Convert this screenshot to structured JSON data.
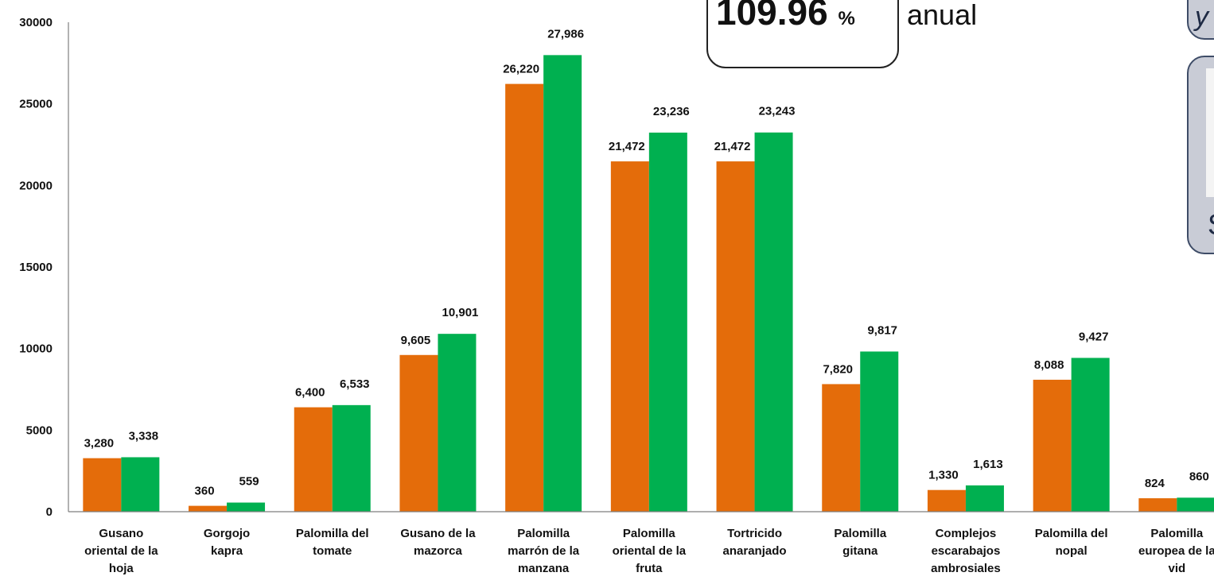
{
  "chart_data": {
    "type": "bar",
    "categories": [
      [
        "Gusano",
        "oriental de la",
        "hoja"
      ],
      [
        "Gorgojo",
        "kapra"
      ],
      [
        "Palomilla del",
        "tomate"
      ],
      [
        "Gusano de la",
        "mazorca"
      ],
      [
        "Palomilla",
        "marrón de la",
        "manzana"
      ],
      [
        "Palomilla",
        "oriental de la",
        "fruta"
      ],
      [
        "Tortricido",
        "anaranjado"
      ],
      [
        "Palomilla",
        "gitana"
      ],
      [
        "Complejos",
        "escarabajos",
        "ambrosiales"
      ],
      [
        "Palomilla del",
        "nopal"
      ],
      [
        "Palomilla",
        "europea de la",
        "vid"
      ]
    ],
    "series": [
      {
        "color": "#e46c0a",
        "values": [
          3280,
          360,
          6400,
          9605,
          26220,
          21472,
          21472,
          7820,
          1330,
          8088,
          824
        ],
        "labels": [
          "3,280",
          "360",
          "6,400",
          "9,605",
          "26,220",
          "21,472",
          "21,472",
          "7,820",
          "1,330",
          "8,088",
          "824"
        ]
      },
      {
        "color": "#00b050",
        "values": [
          3338,
          559,
          6533,
          10901,
          27986,
          23236,
          23243,
          9817,
          1613,
          9427,
          860
        ],
        "labels": [
          "3,338",
          "559",
          "6,533",
          "10,901",
          "27,986",
          "23,236",
          "23,243",
          "9,817",
          "1,613",
          "9,427",
          "860"
        ]
      }
    ],
    "ylim": [
      0,
      30000
    ],
    "yticks": [
      "0",
      "5000",
      "10000",
      "15000",
      "20000",
      "25000",
      "30000"
    ],
    "grid": false,
    "legend": "none"
  },
  "callout": {
    "value": "109.96",
    "unit": "%",
    "caption": "anual"
  },
  "side": {
    "text1": "y",
    "text2": "S"
  }
}
